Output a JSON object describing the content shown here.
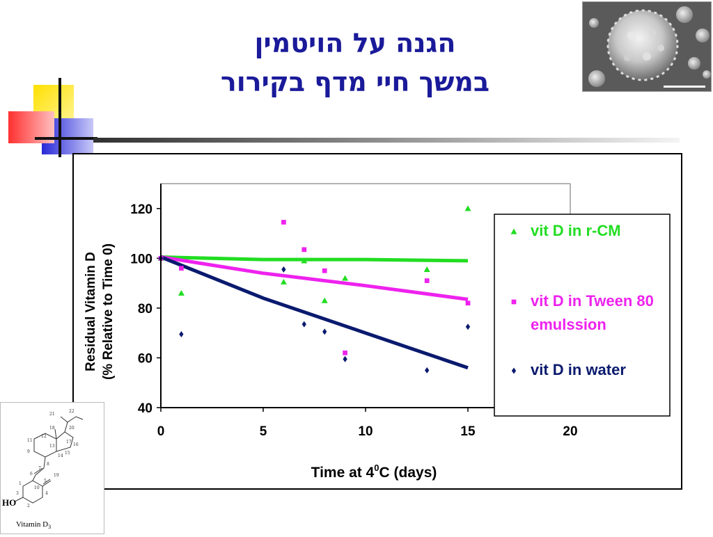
{
  "slide": {
    "title_line1": "הגנה על הויטמין",
    "title_line2": "במשך חיי מדף בקירור"
  },
  "molecule": {
    "label": "Vitamin D",
    "label_sub": "3",
    "ho_label": "HO",
    "atom_numbers": [
      "21",
      "22",
      "18",
      "20",
      "12",
      "17",
      "11",
      "13",
      "16",
      "9",
      "14",
      "15",
      "8",
      "7",
      "6",
      "19",
      "5",
      "10",
      "4",
      "1",
      "3",
      "2"
    ]
  },
  "chart_data": {
    "type": "scatter",
    "title": "",
    "xlabel_main": "Time at 4",
    "xlabel_sup": "0",
    "xlabel_tail": "C (days)",
    "ylabel_line1": "Residual Vitamin D",
    "ylabel_line2": "(% Relative to Time 0)",
    "xlim": [
      0,
      20
    ],
    "ylim": [
      40,
      130
    ],
    "x_ticks": [
      0,
      5,
      10,
      15,
      20
    ],
    "y_ticks": [
      40,
      60,
      80,
      100,
      120
    ],
    "legend_position": "right",
    "series": [
      {
        "name": "vit D in r-CM",
        "marker": "triangle",
        "color": "#22dd22",
        "x": [
          0,
          1,
          6,
          7,
          8,
          9,
          13,
          15
        ],
        "y": [
          100,
          86,
          90.5,
          99,
          83,
          92,
          95.5,
          120
        ],
        "trend": {
          "x": [
            0,
            5,
            10,
            15
          ],
          "y": [
            100.5,
            99.5,
            99.5,
            99
          ]
        }
      },
      {
        "name": "vit D in Tween 80 emulssion",
        "marker": "square",
        "color": "#ee22ee",
        "x": [
          0,
          1,
          6,
          7,
          8,
          9,
          13,
          15
        ],
        "y": [
          100,
          96,
          114.5,
          103.5,
          95,
          62,
          91,
          82
        ],
        "trend": {
          "x": [
            0,
            5,
            10,
            15
          ],
          "y": [
            100.5,
            94,
            89,
            83.5
          ]
        }
      },
      {
        "name": "vit D in water",
        "marker": "diamond",
        "color": "#0a1a6e",
        "x": [
          0,
          1,
          6,
          7,
          8,
          9,
          13,
          15
        ],
        "y": [
          100,
          69.5,
          95.5,
          73.5,
          70.5,
          59.5,
          55,
          72.5
        ],
        "trend": {
          "x": [
            0,
            5,
            10,
            15
          ],
          "y": [
            100.5,
            84,
            70,
            56
          ]
        }
      }
    ]
  }
}
